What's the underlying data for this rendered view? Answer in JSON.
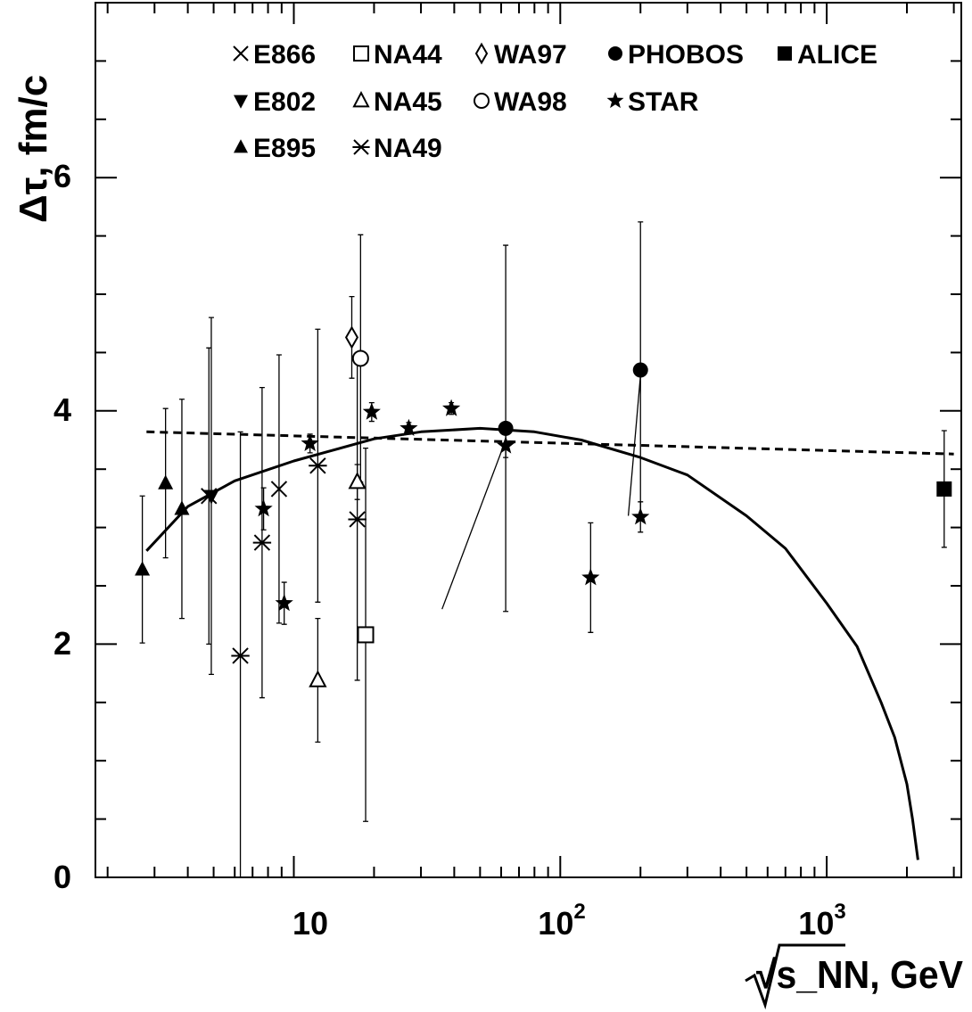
{
  "chart_data": {
    "type": "scatter",
    "title": "",
    "xlabel": "√s_NN, GeV",
    "ylabel": "Δτ, fm/c",
    "xscale": "log",
    "xlim": [
      1.8,
      3200
    ],
    "ylim": [
      0,
      7.5
    ],
    "x_ticks": [
      {
        "base": "10",
        "exp": ""
      },
      {
        "base": "10",
        "exp": "2"
      },
      {
        "base": "10",
        "exp": "3"
      }
    ],
    "y_ticks": [
      "0",
      "2",
      "4",
      "6"
    ],
    "legend_position": "top",
    "series": [
      {
        "name": "E866",
        "marker": "cross",
        "points": [
          {
            "x": 4.8,
            "y": 3.27,
            "err": 1.27
          },
          {
            "x": 8.8,
            "y": 3.33,
            "err": 1.15
          }
        ]
      },
      {
        "name": "NA44",
        "marker": "open-square",
        "points": [
          {
            "x": 18.6,
            "y": 2.08,
            "err": 1.6
          }
        ]
      },
      {
        "name": "WA97",
        "marker": "open-diamond",
        "points": [
          {
            "x": 16.5,
            "y": 4.63,
            "err": 0.35
          }
        ]
      },
      {
        "name": "PHOBOS",
        "marker": "filled-circle",
        "points": [
          {
            "x": 62.4,
            "y": 3.85,
            "err": 1.57
          },
          {
            "x": 200,
            "y": 4.35,
            "err": 1.27
          }
        ]
      },
      {
        "name": "ALICE",
        "marker": "filled-square",
        "points": [
          {
            "x": 2760,
            "y": 3.33,
            "err": 0.5
          }
        ]
      },
      {
        "name": "E802",
        "marker": "filled-triangle-down",
        "points": [
          {
            "x": 4.9,
            "y": 3.27,
            "err": 1.53
          }
        ]
      },
      {
        "name": "NA45",
        "marker": "open-triangle",
        "points": [
          {
            "x": 12.3,
            "y": 1.69,
            "err": 0.53
          },
          {
            "x": 17.3,
            "y": 3.39,
            "err": 0.15
          }
        ]
      },
      {
        "name": "WA98",
        "marker": "open-circle",
        "points": [
          {
            "x": 17.8,
            "y": 4.45,
            "err": 1.06
          }
        ]
      },
      {
        "name": "STAR",
        "marker": "star",
        "points": [
          {
            "x": 7.7,
            "y": 3.16,
            "err": 0.18
          },
          {
            "x": 9.2,
            "y": 2.35,
            "err": 0.18
          },
          {
            "x": 11.5,
            "y": 3.72,
            "err": 0.08
          },
          {
            "x": 19.6,
            "y": 3.99,
            "err": 0.08
          },
          {
            "x": 27,
            "y": 3.85,
            "err": 0.05
          },
          {
            "x": 39,
            "y": 4.02,
            "err": 0.05
          },
          {
            "x": 62.4,
            "y": 3.7,
            "err": 0.1
          },
          {
            "x": 130,
            "y": 2.57,
            "err": 0.47
          },
          {
            "x": 200,
            "y": 3.09,
            "err": 0.13
          }
        ]
      },
      {
        "name": "E895",
        "marker": "filled-triangle",
        "points": [
          {
            "x": 2.7,
            "y": 2.64,
            "err": 0.63
          },
          {
            "x": 3.3,
            "y": 3.38,
            "err": 0.64
          },
          {
            "x": 3.8,
            "y": 3.16,
            "err": 0.94
          }
        ]
      },
      {
        "name": "NA49",
        "marker": "asterisk",
        "points": [
          {
            "x": 6.3,
            "y": 1.9,
            "err": 1.92
          },
          {
            "x": 7.6,
            "y": 2.87,
            "err": 1.33
          },
          {
            "x": 12.3,
            "y": 3.53,
            "err": 1.17
          },
          {
            "x": 17.3,
            "y": 3.07,
            "err": 1.38
          }
        ]
      }
    ],
    "curves": [
      {
        "style": "solid",
        "points": [
          [
            2.8,
            2.8
          ],
          [
            4,
            3.18
          ],
          [
            6,
            3.4
          ],
          [
            10,
            3.57
          ],
          [
            20,
            3.76
          ],
          [
            30,
            3.82
          ],
          [
            50,
            3.85
          ],
          [
            80,
            3.82
          ],
          [
            120,
            3.75
          ],
          [
            200,
            3.6
          ],
          [
            300,
            3.45
          ],
          [
            500,
            3.1
          ],
          [
            700,
            2.82
          ],
          [
            1000,
            2.35
          ],
          [
            1300,
            1.98
          ],
          [
            1600,
            1.5
          ],
          [
            1800,
            1.2
          ],
          [
            2000,
            0.8
          ],
          [
            2100,
            0.5
          ],
          [
            2200,
            0.15
          ]
        ]
      },
      {
        "style": "dashed",
        "points": [
          [
            2.8,
            3.82
          ],
          [
            3000,
            3.63
          ]
        ]
      },
      {
        "style": "thin",
        "points": [
          [
            36,
            2.3
          ],
          [
            62.4,
            3.75
          ]
        ]
      },
      {
        "style": "thin",
        "points": [
          [
            180,
            3.1
          ],
          [
            200,
            4.3
          ]
        ]
      }
    ]
  }
}
